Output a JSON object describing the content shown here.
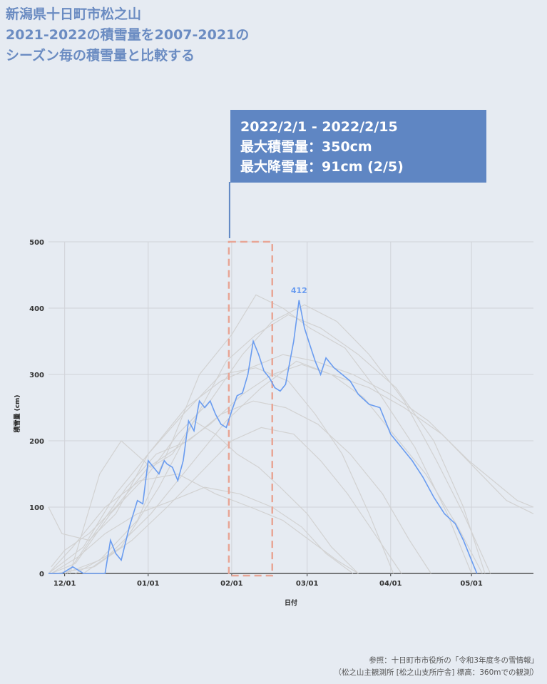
{
  "title": {
    "line1": "新潟県十日町市松之山",
    "line2": "2021-2022の積雪量を2007-2021の",
    "line3": "シーズン毎の積雪量と比較する"
  },
  "callout": {
    "line1": "2022/2/1 - 2022/2/15",
    "line2": "最大積雪量：350cm",
    "line3": "最大降雪量：91cm (2/5)"
  },
  "source": {
    "line1": "参照：十日町市市役所の「令和3年度冬の雪情報」",
    "line2": "（松之山主観測所 [松之山支所庁舎] 標高：360mでの観測）"
  },
  "colors": {
    "highlight": "#6a9cf0",
    "background_series": "#d2d2d2",
    "callout": "#5f86c3",
    "title": "#6b8cc2",
    "selection_box": "#e8a595"
  },
  "chart_data": {
    "type": "line",
    "xlabel": "日付",
    "ylabel": "積雪量 (cm)",
    "ylim": [
      0,
      500
    ],
    "yticks": [
      0,
      100,
      200,
      300,
      400,
      500
    ],
    "x_domain": [
      "2021-11-25",
      "2022-05-24"
    ],
    "xticks": [
      {
        "date": "2021-12-01",
        "label": "12/01"
      },
      {
        "date": "2022-01-01",
        "label": "01/01"
      },
      {
        "date": "2022-02-01",
        "label": "02/01"
      },
      {
        "date": "2022-03-01",
        "label": "03/01"
      },
      {
        "date": "2022-04-01",
        "label": "04/01"
      },
      {
        "date": "2022-05-01",
        "label": "05/01"
      }
    ],
    "grid": true,
    "highlight_range": [
      "2022-02-01",
      "2022-02-15"
    ],
    "peak_label": {
      "date": "2022-02-26",
      "value": 412,
      "text": "412"
    },
    "highlight_series": {
      "x": [
        "2021-11-25",
        "2021-11-30",
        "2021-12-04",
        "2021-12-08",
        "2021-12-12",
        "2021-12-16",
        "2021-12-18",
        "2021-12-20",
        "2021-12-22",
        "2021-12-25",
        "2021-12-28",
        "2021-12-30",
        "2022-01-01",
        "2022-01-03",
        "2022-01-05",
        "2022-01-07",
        "2022-01-08",
        "2022-01-10",
        "2022-01-12",
        "2022-01-14",
        "2022-01-16",
        "2022-01-18",
        "2022-01-20",
        "2022-01-22",
        "2022-01-24",
        "2022-01-26",
        "2022-01-28",
        "2022-01-30",
        "2022-02-01",
        "2022-02-03",
        "2022-02-05",
        "2022-02-07",
        "2022-02-09",
        "2022-02-11",
        "2022-02-13",
        "2022-02-15",
        "2022-02-17",
        "2022-02-19",
        "2022-02-21",
        "2022-02-24",
        "2022-02-26",
        "2022-02-28",
        "2022-03-02",
        "2022-03-04",
        "2022-03-06",
        "2022-03-08",
        "2022-03-11",
        "2022-03-14",
        "2022-03-17",
        "2022-03-20",
        "2022-03-24",
        "2022-03-28",
        "2022-04-01",
        "2022-04-05",
        "2022-04-09",
        "2022-04-13",
        "2022-04-17",
        "2022-04-21",
        "2022-04-25",
        "2022-04-28",
        "2022-05-01",
        "2022-05-03"
      ],
      "y": [
        0,
        0,
        10,
        0,
        0,
        0,
        50,
        30,
        20,
        70,
        110,
        105,
        170,
        160,
        150,
        170,
        165,
        160,
        140,
        170,
        230,
        215,
        260,
        250,
        260,
        240,
        225,
        220,
        245,
        268,
        272,
        300,
        350,
        330,
        305,
        295,
        280,
        275,
        285,
        350,
        412,
        370,
        345,
        320,
        300,
        325,
        310,
        300,
        290,
        270,
        255,
        250,
        210,
        190,
        170,
        145,
        115,
        90,
        75,
        50,
        20,
        0
      ]
    },
    "background_series": [
      {
        "x": [
          "2021-11-26",
          "2021-12-01",
          "2021-12-10",
          "2021-12-20",
          "2022-01-01",
          "2022-01-12",
          "2022-01-24",
          "2022-02-05",
          "2022-02-16",
          "2022-02-27",
          "2022-03-10",
          "2022-03-22",
          "2022-04-02",
          "2022-04-14",
          "2022-04-26",
          "2022-05-05"
        ],
        "y": [
          10,
          35,
          60,
          100,
          160,
          190,
          225,
          270,
          300,
          315,
          300,
          265,
          210,
          150,
          70,
          0
        ]
      },
      {
        "x": [
          "2021-11-26",
          "2021-12-05",
          "2021-12-18",
          "2022-01-01",
          "2022-01-12",
          "2022-01-24",
          "2022-02-05",
          "2022-02-16",
          "2022-02-28",
          "2022-03-12",
          "2022-03-24",
          "2022-04-06",
          "2022-04-18",
          "2022-04-28",
          "2022-05-08"
        ],
        "y": [
          0,
          15,
          90,
          150,
          210,
          260,
          330,
          380,
          405,
          380,
          330,
          260,
          170,
          90,
          0
        ]
      },
      {
        "x": [
          "2021-12-01",
          "2021-12-14",
          "2021-12-28",
          "2022-01-10",
          "2022-01-20",
          "2022-02-01",
          "2022-02-10",
          "2022-02-20",
          "2022-03-02",
          "2022-03-15",
          "2022-03-28",
          "2022-04-10",
          "2022-04-22",
          "2022-05-01"
        ],
        "y": [
          0,
          20,
          80,
          200,
          300,
          360,
          420,
          400,
          370,
          340,
          270,
          190,
          90,
          0
        ]
      },
      {
        "x": [
          "2021-11-25",
          "2021-12-08",
          "2021-12-20",
          "2022-01-03",
          "2022-01-15",
          "2022-01-28",
          "2022-02-08",
          "2022-02-20",
          "2022-03-04",
          "2022-03-18",
          "2022-04-01",
          "2022-04-15",
          "2022-04-30",
          "2022-05-18",
          "2022-05-24"
        ],
        "y": [
          0,
          40,
          120,
          190,
          250,
          290,
          310,
          330,
          320,
          300,
          270,
          230,
          170,
          110,
          100
        ]
      },
      {
        "x": [
          "2021-12-02",
          "2021-12-12",
          "2021-12-24",
          "2022-01-04",
          "2022-01-16",
          "2022-01-28",
          "2022-02-09",
          "2022-02-21",
          "2022-03-05",
          "2022-03-17",
          "2022-03-29",
          "2022-04-08",
          "2022-04-16"
        ],
        "y": [
          0,
          60,
          130,
          180,
          200,
          240,
          260,
          250,
          225,
          180,
          120,
          50,
          0
        ]
      },
      {
        "x": [
          "2021-11-28",
          "2021-12-12",
          "2021-12-26",
          "2022-01-08",
          "2022-01-20",
          "2022-02-01",
          "2022-02-12",
          "2022-02-24",
          "2022-03-06",
          "2022-03-16",
          "2022-03-26",
          "2022-04-05"
        ],
        "y": [
          0,
          10,
          50,
          100,
          150,
          200,
          220,
          210,
          170,
          120,
          60,
          0
        ]
      },
      {
        "x": [
          "2021-11-25",
          "2021-12-04",
          "2021-12-16",
          "2021-12-29",
          "2022-01-12",
          "2022-01-26",
          "2022-02-08",
          "2022-02-20",
          "2022-03-02",
          "2022-03-12",
          "2022-03-20"
        ],
        "y": [
          0,
          40,
          100,
          140,
          150,
          120,
          100,
          80,
          50,
          20,
          0
        ]
      },
      {
        "x": [
          "2021-12-03",
          "2021-12-14",
          "2021-12-22",
          "2022-01-02",
          "2022-01-10",
          "2022-01-18",
          "2022-01-26",
          "2022-02-03",
          "2022-02-11",
          "2022-02-19",
          "2022-03-01",
          "2022-03-10",
          "2022-03-20"
        ],
        "y": [
          0,
          150,
          200,
          160,
          180,
          230,
          210,
          180,
          160,
          130,
          90,
          40,
          0
        ]
      },
      {
        "x": [
          "2021-12-08",
          "2021-12-22",
          "2022-01-05",
          "2022-01-18",
          "2022-01-30",
          "2022-02-10",
          "2022-02-22",
          "2022-03-06",
          "2022-03-20",
          "2022-04-03",
          "2022-04-17",
          "2022-04-28",
          "2022-05-06"
        ],
        "y": [
          0,
          40,
          130,
          230,
          320,
          360,
          390,
          370,
          330,
          280,
          200,
          100,
          0
        ]
      },
      {
        "x": [
          "2021-11-26",
          "2021-12-06",
          "2021-12-16",
          "2021-12-28",
          "2022-01-10",
          "2022-01-22",
          "2022-02-04",
          "2022-02-16",
          "2022-02-27",
          "2022-03-08",
          "2022-03-18"
        ],
        "y": [
          0,
          25,
          60,
          90,
          110,
          130,
          120,
          100,
          70,
          30,
          0
        ]
      },
      {
        "x": [
          "2021-11-25",
          "2021-11-30",
          "2021-12-10",
          "2021-12-20",
          "2022-01-01",
          "2022-01-14",
          "2022-01-28",
          "2022-02-10",
          "2022-02-22",
          "2022-03-04",
          "2022-03-14",
          "2022-03-24",
          "2022-04-02"
        ],
        "y": [
          100,
          60,
          50,
          90,
          180,
          240,
          300,
          310,
          290,
          240,
          180,
          90,
          0
        ]
      },
      {
        "x": [
          "2021-12-05",
          "2021-12-18",
          "2022-01-02",
          "2022-01-16",
          "2022-01-30",
          "2022-02-12",
          "2022-02-25",
          "2022-03-10",
          "2022-03-24",
          "2022-04-06",
          "2022-04-20",
          "2022-05-02",
          "2022-05-14",
          "2022-05-24"
        ],
        "y": [
          0,
          30,
          90,
          160,
          230,
          280,
          320,
          300,
          280,
          250,
          210,
          160,
          110,
          90
        ]
      }
    ]
  }
}
